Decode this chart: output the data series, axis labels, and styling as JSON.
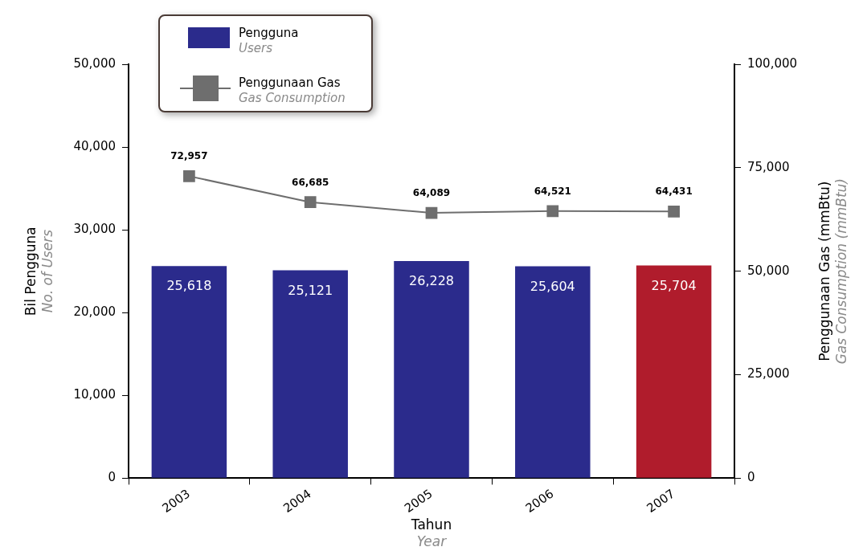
{
  "chart_data": {
    "type": "bar",
    "xlabel": "Tahun\nYear",
    "ylabel": "Bil Pengguna\nNo. of Users",
    "y2label": "Penggunaan Gas (mmBtu)\nGas Consumption (mmBtu)",
    "categories": [
      "2003",
      "2004",
      "2005",
      "2006",
      "2007"
    ],
    "series": [
      {
        "name": "Pengguna\nUsers",
        "color": "#2b2b8c",
        "colors": [
          "#2b2b8c",
          "#2b2b8c",
          "#2b2b8c",
          "#2b2b8c",
          "#b01c2c"
        ],
        "values": [
          25618,
          25121,
          26228,
          25604,
          25704
        ],
        "value_labels": [
          "25,618",
          "25,121",
          "26,228",
          "25,604",
          "25,704"
        ]
      },
      {
        "name": "Penggunaan Gas\nGas Consumption",
        "type": "line",
        "axis": "y2",
        "color": "#6e6e6e",
        "marker": "square",
        "values": [
          72957,
          66685,
          64089,
          64521,
          64431
        ],
        "value_labels": [
          "72,957",
          "66,685",
          "64,089",
          "64,521",
          "64,431"
        ]
      }
    ],
    "ylim": [
      0,
      50000
    ],
    "yticks": [
      {
        "value": 0,
        "label": "0"
      },
      {
        "value": 10000,
        "label": "10,000"
      },
      {
        "value": 20000,
        "label": "20,000"
      },
      {
        "value": 30000,
        "label": "30,000"
      },
      {
        "value": 40000,
        "label": "40,000"
      },
      {
        "value": 50000,
        "label": "50,000"
      }
    ],
    "y2lim": [
      0,
      100000
    ],
    "y2ticks": [
      {
        "value": 0,
        "label": "0"
      },
      {
        "value": 25000,
        "label": "25,000"
      },
      {
        "value": 50000,
        "label": "50,000"
      },
      {
        "value": 75000,
        "label": "75,000"
      },
      {
        "value": 100000,
        "label": "100,000"
      }
    ],
    "legend": "top left"
  }
}
